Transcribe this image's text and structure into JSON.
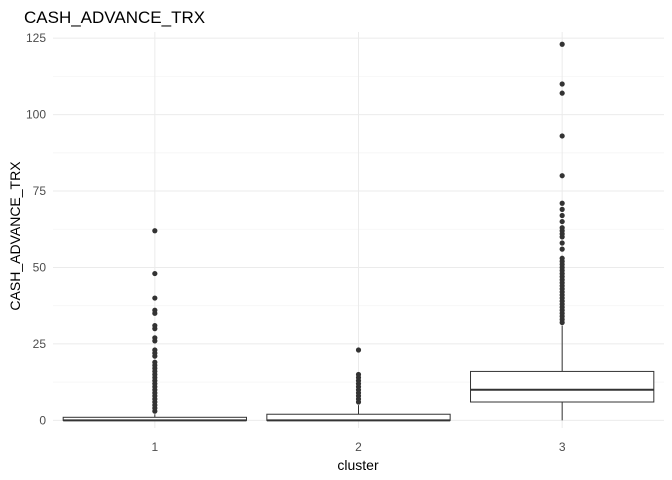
{
  "chart_data": {
    "type": "boxplot",
    "title": "CASH_ADVANCE_TRX",
    "xlabel": "cluster",
    "ylabel": "CASH_ADVANCE_TRX",
    "categories": [
      "1",
      "2",
      "3"
    ],
    "ylim": [
      -2.5,
      127
    ],
    "y_ticks": [
      0,
      25,
      50,
      75,
      100,
      125
    ],
    "y_tick_labels": [
      "0",
      "25",
      "50",
      "75",
      "100",
      "125"
    ],
    "grid": true,
    "boxes": [
      {
        "category": "1",
        "min": 0,
        "q1": 0,
        "median": 0,
        "q3": 1,
        "max": 2,
        "outliers": [
          3,
          4,
          5,
          6,
          7,
          8,
          9,
          10,
          11,
          12,
          13,
          14,
          15,
          16,
          17,
          18,
          19,
          21,
          22,
          23,
          26,
          27,
          30,
          31,
          35,
          36,
          40,
          48,
          62
        ]
      },
      {
        "category": "2",
        "min": 0,
        "q1": 0,
        "median": 0,
        "q3": 2,
        "max": 5,
        "outliers": [
          6,
          7,
          8,
          9,
          10,
          11,
          12,
          13,
          14,
          15,
          23
        ]
      },
      {
        "category": "3",
        "min": 0,
        "q1": 6,
        "median": 10,
        "q3": 16,
        "max": 31,
        "outliers": [
          32,
          33,
          34,
          35,
          36,
          37,
          38,
          39,
          40,
          41,
          42,
          43,
          44,
          45,
          46,
          47,
          48,
          49,
          50,
          51,
          52,
          53,
          56,
          58,
          60,
          61,
          62,
          63,
          65,
          67,
          69,
          71,
          80,
          93,
          107,
          110,
          123
        ]
      }
    ]
  }
}
